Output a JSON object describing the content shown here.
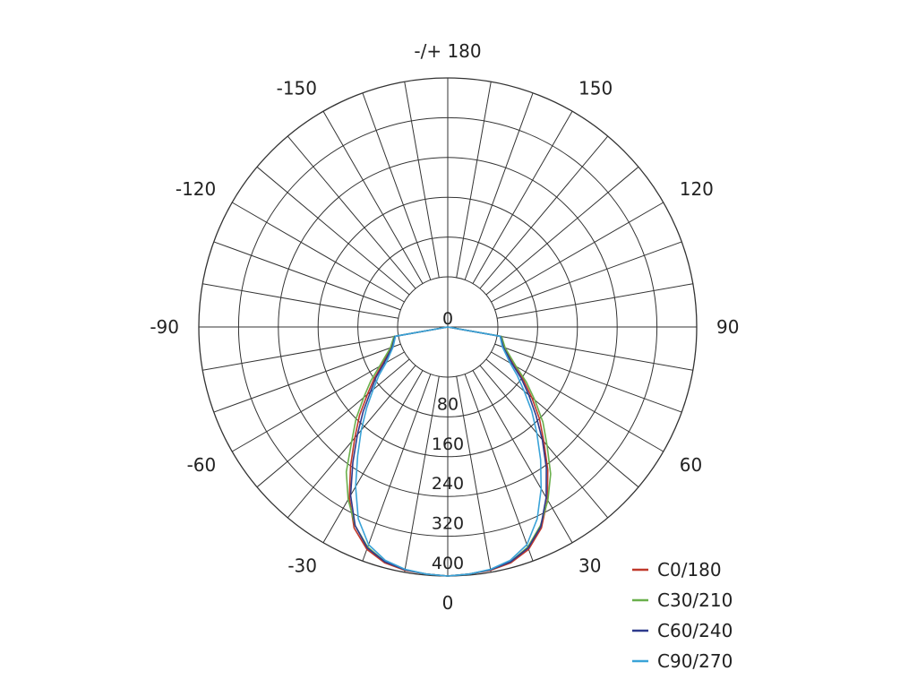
{
  "chart_data": {
    "type": "polar-line",
    "radial_ticks": [
      0,
      80,
      160,
      240,
      320,
      400
    ],
    "radial_tick_labels": [
      "0",
      "80",
      "160",
      "240",
      "320",
      "400"
    ],
    "rlim": [
      0,
      400
    ],
    "angle_step": 10,
    "angle_labels": [
      {
        "angle": 180,
        "text": "-/+ 180"
      },
      {
        "angle": -150,
        "text": "-150"
      },
      {
        "angle": 150,
        "text": "150"
      },
      {
        "angle": -120,
        "text": "-120"
      },
      {
        "angle": 120,
        "text": "120"
      },
      {
        "angle": -90,
        "text": "-90"
      },
      {
        "angle": 90,
        "text": "90"
      },
      {
        "angle": -60,
        "text": "-60"
      },
      {
        "angle": 60,
        "text": "60"
      },
      {
        "angle": -30,
        "text": "-30"
      },
      {
        "angle": 30,
        "text": "30"
      },
      {
        "angle": 0,
        "text": "0"
      }
    ],
    "grid": true,
    "legend_position": "bottom-right",
    "angles": [
      -90,
      -80,
      -70,
      -60,
      -55,
      -50,
      -45,
      -40,
      -35,
      -30,
      -25,
      -20,
      -15,
      -10,
      -5,
      0,
      5,
      10,
      15,
      20,
      25,
      30,
      35,
      40,
      45,
      50,
      55,
      60,
      70,
      80,
      90
    ],
    "series": [
      {
        "name": "C0/180",
        "color": "#c0392b",
        "values": [
          0,
          8,
          20,
          52,
          80,
          110,
          150,
          190,
          240,
          295,
          345,
          375,
          390,
          396,
          398,
          400,
          398,
          396,
          390,
          375,
          345,
          300,
          250,
          200,
          160,
          120,
          85,
          55,
          20,
          8,
          0
        ]
      },
      {
        "name": "C30/210",
        "color": "#6ab04c",
        "values": [
          0,
          9,
          22,
          58,
          88,
          120,
          160,
          200,
          255,
          300,
          340,
          370,
          388,
          395,
          398,
          400,
          398,
          395,
          388,
          370,
          340,
          302,
          260,
          210,
          170,
          128,
          92,
          58,
          22,
          9,
          0
        ]
      },
      {
        "name": "C60/240",
        "color": "#2e3a8c",
        "values": [
          0,
          7,
          18,
          48,
          75,
          102,
          140,
          182,
          232,
          290,
          340,
          372,
          388,
          395,
          398,
          400,
          398,
          395,
          388,
          372,
          342,
          295,
          245,
          195,
          150,
          112,
          80,
          50,
          18,
          7,
          0
        ]
      },
      {
        "name": "C90/270",
        "color": "#3aa3d8",
        "values": [
          0,
          6,
          16,
          42,
          68,
          95,
          130,
          170,
          215,
          270,
          325,
          365,
          385,
          394,
          398,
          400,
          398,
          394,
          385,
          365,
          325,
          275,
          225,
          178,
          138,
          100,
          70,
          44,
          16,
          6,
          0
        ]
      }
    ]
  }
}
